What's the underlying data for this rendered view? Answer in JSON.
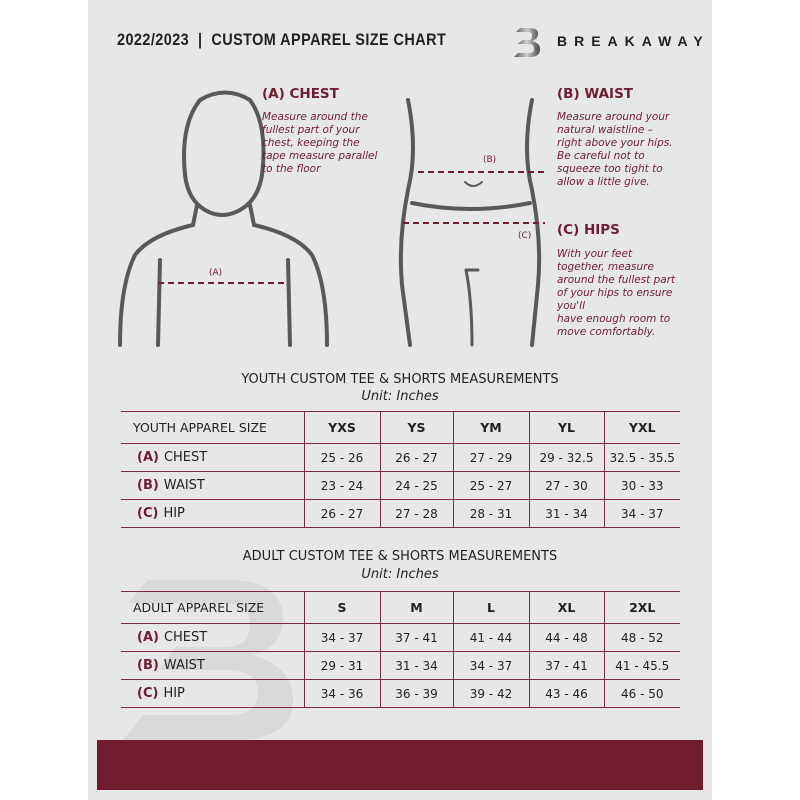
{
  "header": {
    "title": "2022/2023  |  CUSTOM APPAREL SIZE CHART",
    "brand": "BREAKAWAY"
  },
  "colors": {
    "accent": "#6f1d2f",
    "background": "#e6e7e8"
  },
  "chest": {
    "heading": "(A) CHEST",
    "text": "Measure around the\nfullest part of your\nchest, keeping the\ntape measure parallel\nto the floor",
    "marker": "(A)"
  },
  "waist": {
    "heading": "(B) WAIST",
    "text": "Measure around your\nnatural waistline –\nright above your hips.\nBe careful not to\nsqueeze too tight to\nallow a little give.",
    "marker": "(B)"
  },
  "hips": {
    "heading": "(C) HIPS",
    "text": "With your feet\ntogether, measure\naround the fullest part\nof your hips to ensure\nyou'll\nhave enough room to\nmove comfortably.",
    "marker": "(C)"
  },
  "youth": {
    "title": "YOUTH CUSTOM TEE & SHORTS MEASUREMENTS",
    "unit": "Unit: Inches",
    "header": "YOUTH APPAREL SIZE",
    "sizes": [
      "YXS",
      "YS",
      "YM",
      "YL",
      "YXL"
    ],
    "rows": [
      {
        "code": "(A)",
        "label": "CHEST",
        "values": [
          "25 - 26",
          "26 - 27",
          "27 - 29",
          "29 - 32.5",
          "32.5 - 35.5"
        ]
      },
      {
        "code": "(B)",
        "label": "WAIST",
        "values": [
          "23 - 24",
          "24 - 25",
          "25 - 27",
          "27 - 30",
          "30 - 33"
        ]
      },
      {
        "code": "(C)",
        "label": "HIP",
        "values": [
          "26 - 27",
          "27 - 28",
          "28 - 31",
          "31 - 34",
          "34 - 37"
        ]
      }
    ]
  },
  "adult": {
    "title": "ADULT CUSTOM TEE & SHORTS MEASUREMENTS",
    "unit": "Unit: Inches",
    "header": "ADULT APPAREL SIZE",
    "sizes": [
      "S",
      "M",
      "L",
      "XL",
      "2XL"
    ],
    "rows": [
      {
        "code": "(A)",
        "label": "CHEST",
        "values": [
          "34 - 37",
          "37 - 41",
          "41 - 44",
          "44 - 48",
          "48 - 52"
        ]
      },
      {
        "code": "(B)",
        "label": "WAIST",
        "values": [
          "29 - 31",
          "31 - 34",
          "34 - 37",
          "37 - 41",
          "41 - 45.5"
        ]
      },
      {
        "code": "(C)",
        "label": "HIP",
        "values": [
          "34 - 36",
          "36 - 39",
          "39 - 42",
          "43 - 46",
          "46 - 50"
        ]
      }
    ]
  }
}
